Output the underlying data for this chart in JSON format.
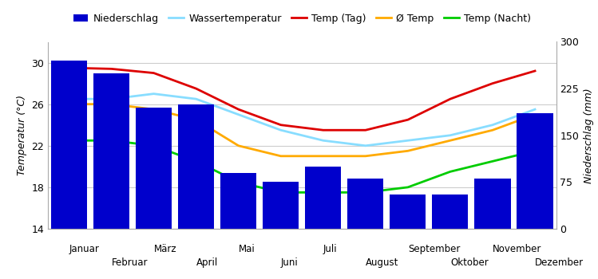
{
  "months": [
    "Januar",
    "Februar",
    "März",
    "April",
    "Mai",
    "Juni",
    "Juli",
    "August",
    "September",
    "Oktober",
    "November",
    "Dezember"
  ],
  "precipitation": [
    270,
    250,
    195,
    200,
    90,
    75,
    100,
    80,
    55,
    55,
    80,
    185
  ],
  "temp_day": [
    29.5,
    29.4,
    29.0,
    27.5,
    25.5,
    24.0,
    23.5,
    23.5,
    24.5,
    26.5,
    28.0,
    29.2
  ],
  "temp_avg": [
    26.0,
    26.0,
    25.5,
    24.5,
    22.0,
    21.0,
    21.0,
    21.0,
    21.5,
    22.5,
    23.5,
    25.0
  ],
  "temp_night": [
    22.5,
    22.5,
    22.0,
    20.5,
    18.5,
    17.5,
    17.5,
    17.5,
    18.0,
    19.5,
    20.5,
    21.5
  ],
  "water_temp": [
    26.5,
    26.5,
    27.0,
    26.5,
    25.0,
    23.5,
    22.5,
    22.0,
    22.5,
    23.0,
    24.0,
    25.5
  ],
  "color_precipitation": "#0000cc",
  "color_day": "#dd0000",
  "color_avg": "#ffaa00",
  "color_night": "#00cc00",
  "color_water": "#88ddff",
  "ylabel_left": "Temperatur (°C)",
  "ylabel_right": "Niederschlag (mm)",
  "ylim_left": [
    14,
    32
  ],
  "ylim_right": [
    0,
    300
  ],
  "yticks_left": [
    14,
    18,
    22,
    26,
    30
  ],
  "yticks_right": [
    0,
    75,
    150,
    225,
    300
  ],
  "legend_labels": [
    "Niederschlag",
    "Wassertemperatur",
    "Temp (Tag)",
    "Ø Temp",
    "Temp (Nacht)"
  ],
  "background_color": "#ffffff",
  "grid_color": "#cccccc"
}
